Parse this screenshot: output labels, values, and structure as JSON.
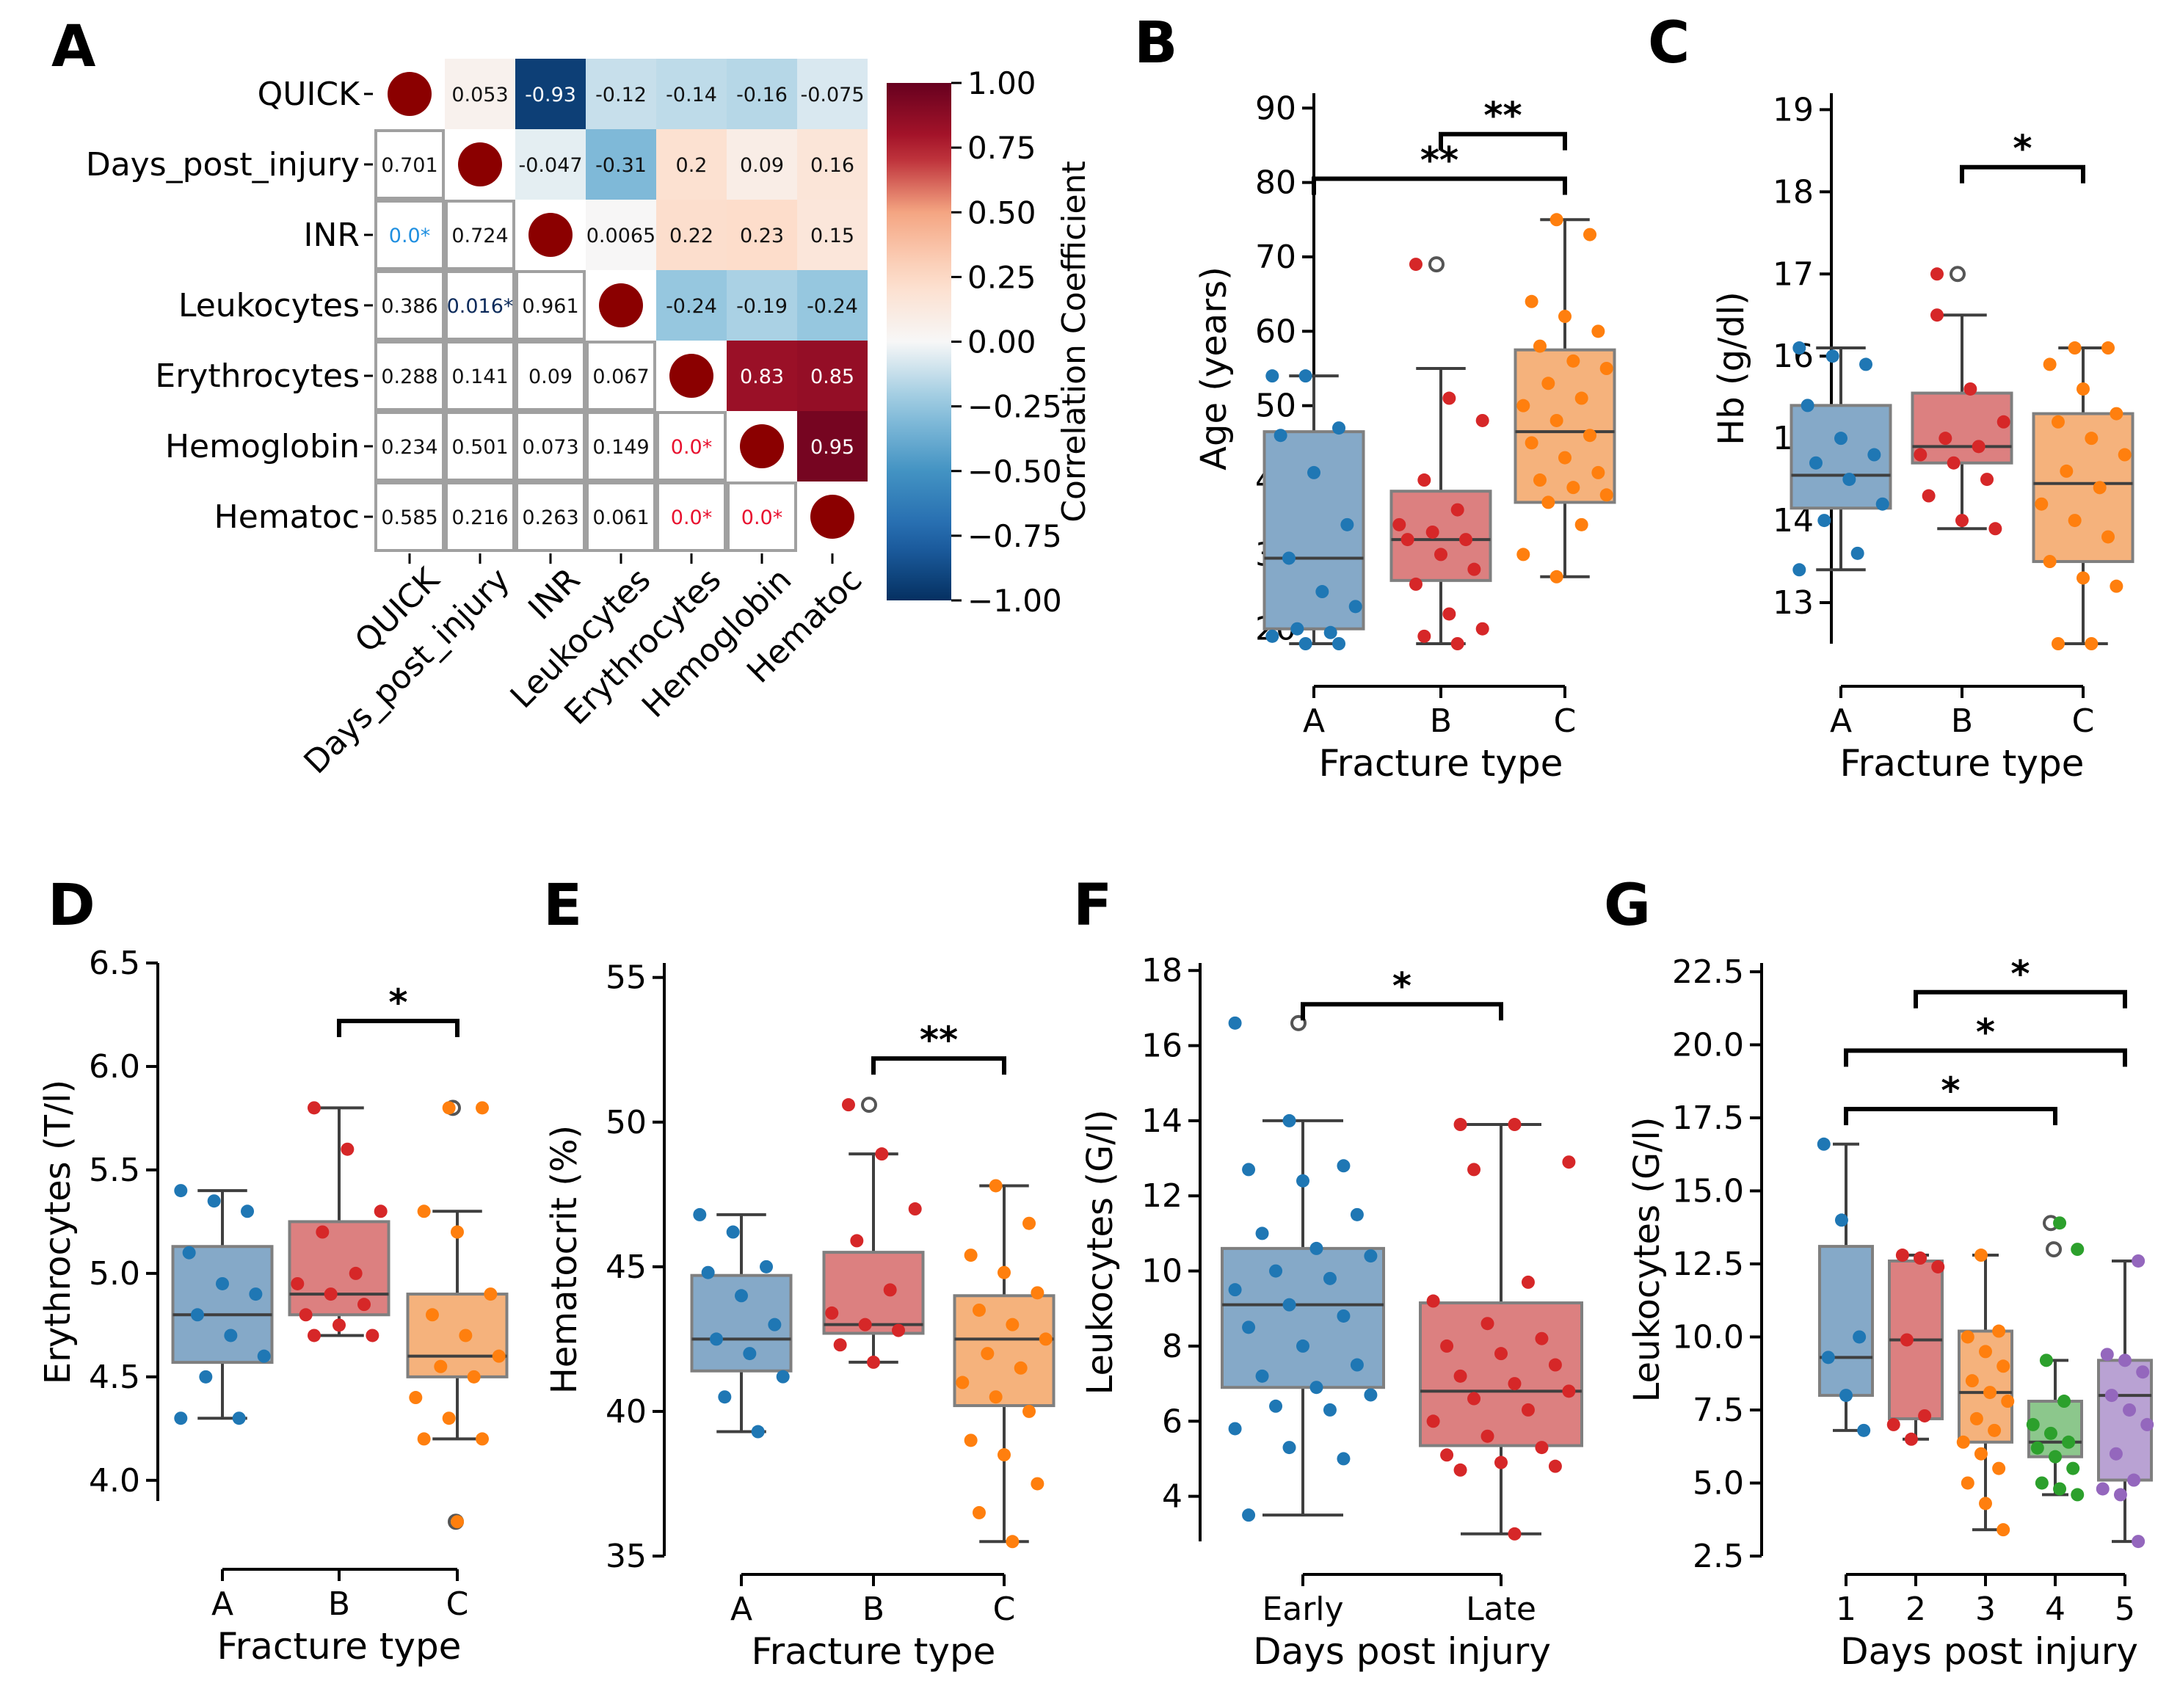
{
  "figure_title": "Multi-panel figure: correlation heatmap and box plots of clinical variables",
  "colors": {
    "A": "#1f77b4",
    "B": "#d62728",
    "C": "#ff7f0e",
    "D": "#2ca02c",
    "E": "#9467bd",
    "A_box": "#85a9c8",
    "B_box": "#dc8080",
    "C_box": "#f5b27c",
    "D_box": "#8cc78c",
    "E_box": "#b9a2d3",
    "box_edge": "#7f7f7f",
    "whisker": "#3f3f3f",
    "median": "#3f3f3f",
    "axis": "#000000",
    "cmap_neg": "#053061",
    "cmap_mid": "#f7f7f7",
    "cmap_pos": "#67001f",
    "sig_red": "#e8102e",
    "sig_blue": "#1f8fe0"
  },
  "chart_data": [
    {
      "panel": "A",
      "type": "heatmap",
      "variables": [
        "QUICK",
        "Days_post_injury",
        "INR",
        "Leukocytes",
        "Erythrocytes",
        "Hemoglobin",
        "Hematoc"
      ],
      "upper_triangle_correlations": [
        [
          "",
          "0.053",
          "-0.93",
          "-0.12",
          "-0.14",
          "-0.16",
          "-0.075"
        ],
        [
          "",
          "",
          "-0.047",
          "-0.31",
          "0.2",
          "0.09",
          "0.16"
        ],
        [
          "",
          "",
          "",
          "0.0065",
          "0.22",
          "0.23",
          "0.15"
        ],
        [
          "",
          "",
          "",
          "",
          "-0.24",
          "-0.19",
          "-0.24"
        ],
        [
          "",
          "",
          "",
          "",
          "",
          "0.83",
          "0.85"
        ],
        [
          "",
          "",
          "",
          "",
          "",
          "",
          "0.95"
        ],
        [
          "",
          "",
          "",
          "",
          "",
          "",
          ""
        ]
      ],
      "lower_triangle_pvalues": [
        [
          "",
          "",
          "",
          "",
          "",
          "",
          ""
        ],
        [
          "0.701",
          "",
          "",
          "",
          "",
          "",
          ""
        ],
        [
          "0.0*",
          "0.724",
          "",
          "",
          "",
          "",
          ""
        ],
        [
          "0.386",
          "0.016*",
          "0.961",
          "",
          "",
          "",
          ""
        ],
        [
          "0.288",
          "0.141",
          "0.09",
          "0.067",
          "",
          "",
          ""
        ],
        [
          "0.234",
          "0.501",
          "0.073",
          "0.149",
          "0.0*",
          "",
          ""
        ],
        [
          "0.585",
          "0.216",
          "0.263",
          "0.061",
          "0.0*",
          "0.0*",
          ""
        ]
      ],
      "colorbar": {
        "label": "Correlation Coefficient",
        "range": [
          -1.0,
          1.0
        ],
        "ticks": [
          "1.00",
          "0.75",
          "0.50",
          "0.25",
          "0.00",
          "−0.25",
          "−0.50",
          "−0.75",
          "−1.00"
        ]
      }
    },
    {
      "panel": "B",
      "type": "box",
      "ylabel": "Age (years)",
      "xlabel": "Fracture type",
      "ylim": [
        18,
        92
      ],
      "yticks": [
        20,
        30,
        40,
        50,
        60,
        70,
        80,
        90
      ],
      "groups": [
        {
          "label": "A",
          "color": "A",
          "q1": 20,
          "median": 29.5,
          "q3": 46.5,
          "whislo": 18,
          "whishi": 54,
          "outliers": [],
          "points": [
            54,
            54,
            47,
            46,
            41,
            34,
            29.5,
            25,
            23,
            20,
            19.5,
            19,
            18,
            18
          ]
        },
        {
          "label": "B",
          "color": "B",
          "q1": 26.5,
          "median": 32,
          "q3": 38.5,
          "whislo": 18,
          "whishi": 55,
          "outliers": [
            69
          ],
          "points": [
            69,
            51,
            48,
            40,
            36,
            34,
            33,
            32,
            32,
            30,
            28,
            26,
            22,
            20,
            19,
            18
          ]
        },
        {
          "label": "C",
          "color": "C",
          "q1": 37,
          "median": 46.5,
          "q3": 57.5,
          "whislo": 27,
          "whishi": 75,
          "outliers": [],
          "points": [
            75,
            73,
            64,
            62,
            60,
            58,
            56,
            55,
            53,
            51,
            50,
            48,
            46,
            45,
            43,
            41,
            40,
            39,
            38,
            37,
            34,
            30,
            27
          ]
        }
      ],
      "significance": [
        {
          "from": "B",
          "to": "C",
          "label": "**",
          "y": 86.5
        },
        {
          "from": "A",
          "to": "C",
          "label": "**",
          "y": 80.5
        }
      ]
    },
    {
      "panel": "C",
      "type": "box",
      "ylabel": "Hb (g/dl)",
      "xlabel": "Fracture type",
      "ylim": [
        12.5,
        19.2
      ],
      "yticks": [
        13,
        14,
        15,
        16,
        17,
        18,
        19
      ],
      "groups": [
        {
          "label": "A",
          "color": "A",
          "q1": 14.15,
          "median": 14.55,
          "q3": 15.4,
          "whislo": 13.4,
          "whishi": 16.1,
          "outliers": [],
          "points": [
            16.1,
            16.0,
            15.9,
            15.4,
            15.0,
            14.8,
            14.7,
            14.5,
            14.2,
            14.0,
            13.6,
            13.4
          ]
        },
        {
          "label": "B",
          "color": "B",
          "q1": 14.7,
          "median": 14.9,
          "q3": 15.55,
          "whislo": 13.9,
          "whishi": 16.5,
          "outliers": [
            17.0
          ],
          "points": [
            16.5,
            15.6,
            15.2,
            15.0,
            14.9,
            14.8,
            14.7,
            14.5,
            14.3,
            14.0,
            13.9,
            17.0
          ]
        },
        {
          "label": "C",
          "color": "C",
          "q1": 13.5,
          "median": 14.45,
          "q3": 15.3,
          "whislo": 12.5,
          "whishi": 16.1,
          "outliers": [],
          "points": [
            16.1,
            16.1,
            15.9,
            15.6,
            15.3,
            15.2,
            15.0,
            14.8,
            14.6,
            14.4,
            14.2,
            14.0,
            13.8,
            13.5,
            13.3,
            13.2,
            12.5,
            12.5
          ]
        }
      ],
      "significance": [
        {
          "from": "B",
          "to": "C",
          "label": "*",
          "y": 18.3
        }
      ]
    },
    {
      "panel": "D",
      "type": "box",
      "ylabel": "Erythrocytes (T/l)",
      "xlabel": "Fracture type",
      "ylim": [
        3.9,
        6.5
      ],
      "yticks": [
        "4.0",
        "4.5",
        "5.0",
        "5.5",
        "6.0",
        "6.5"
      ],
      "groups": [
        {
          "label": "A",
          "color": "A",
          "q1": 4.57,
          "median": 4.8,
          "q3": 5.13,
          "whislo": 4.3,
          "whishi": 5.4,
          "outliers": [],
          "points": [
            5.4,
            5.35,
            5.3,
            5.1,
            4.95,
            4.9,
            4.8,
            4.7,
            4.6,
            4.5,
            4.3,
            4.3
          ]
        },
        {
          "label": "B",
          "color": "B",
          "q1": 4.8,
          "median": 4.9,
          "q3": 5.25,
          "whislo": 4.7,
          "whishi": 5.8,
          "outliers": [],
          "points": [
            5.8,
            5.6,
            5.3,
            5.2,
            5.0,
            4.95,
            4.9,
            4.85,
            4.8,
            4.75,
            4.7,
            4.7
          ]
        },
        {
          "label": "C",
          "color": "C",
          "q1": 4.5,
          "median": 4.6,
          "q3": 4.9,
          "whislo": 4.2,
          "whishi": 5.3,
          "outliers": [
            5.8,
            3.8
          ],
          "points": [
            5.8,
            5.8,
            5.3,
            5.2,
            4.9,
            4.8,
            4.7,
            4.6,
            4.55,
            4.5,
            4.4,
            4.3,
            4.2,
            4.2,
            3.8
          ]
        }
      ],
      "significance": [
        {
          "from": "B",
          "to": "C",
          "label": "*",
          "y": 6.22
        }
      ]
    },
    {
      "panel": "E",
      "type": "box",
      "ylabel": "Hematocrit (%)",
      "xlabel": "Fracture type",
      "ylim": [
        35,
        55.5
      ],
      "yticks": [
        35,
        40,
        45,
        50,
        55
      ],
      "groups": [
        {
          "label": "A",
          "color": "A",
          "q1": 41.4,
          "median": 42.5,
          "q3": 44.7,
          "whislo": 39.3,
          "whishi": 46.8,
          "outliers": [],
          "points": [
            46.8,
            46.2,
            45.0,
            44.8,
            44.0,
            43.0,
            42.5,
            42.0,
            41.2,
            40.5,
            39.3
          ]
        },
        {
          "label": "B",
          "color": "B",
          "q1": 42.7,
          "median": 43.0,
          "q3": 45.5,
          "whislo": 41.7,
          "whishi": 48.9,
          "outliers": [
            50.6
          ],
          "points": [
            50.6,
            48.9,
            47.0,
            45.9,
            44.2,
            43.4,
            43.0,
            42.8,
            42.3,
            41.7
          ]
        },
        {
          "label": "C",
          "color": "C",
          "q1": 40.2,
          "median": 42.5,
          "q3": 44.0,
          "whislo": 35.5,
          "whishi": 47.8,
          "outliers": [],
          "points": [
            47.8,
            46.5,
            45.4,
            44.8,
            44.1,
            43.5,
            43.0,
            42.5,
            42.0,
            41.5,
            41.0,
            40.5,
            40.0,
            39.0,
            38.5,
            37.5,
            36.5,
            35.5
          ]
        }
      ],
      "significance": [
        {
          "from": "B",
          "to": "C",
          "label": "**",
          "y": 52.2
        }
      ]
    },
    {
      "panel": "F",
      "type": "box",
      "ylabel": "Leukocytes (G/l)",
      "xlabel": "Days post injury",
      "ylim": [
        2.8,
        18.2
      ],
      "yticks": [
        4,
        6,
        8,
        10,
        12,
        14,
        16,
        18
      ],
      "groups": [
        {
          "label": "Early",
          "color": "A",
          "q1": 6.9,
          "median": 9.1,
          "q3": 10.6,
          "whislo": 3.5,
          "whishi": 14.0,
          "outliers": [
            16.6
          ],
          "points": [
            16.6,
            14.0,
            12.8,
            12.7,
            12.4,
            11.5,
            11.0,
            10.6,
            10.4,
            10.0,
            9.8,
            9.5,
            9.1,
            8.8,
            8.5,
            8.0,
            7.5,
            7.2,
            6.9,
            6.7,
            6.4,
            6.3,
            5.8,
            5.3,
            5.0,
            3.5
          ]
        },
        {
          "label": "Late",
          "color": "B",
          "q1": 5.35,
          "median": 6.8,
          "q3": 9.15,
          "whislo": 3.0,
          "whishi": 13.9,
          "outliers": [],
          "points": [
            13.9,
            13.9,
            12.9,
            12.7,
            9.7,
            9.2,
            8.6,
            8.2,
            8.0,
            7.8,
            7.5,
            7.2,
            7.0,
            6.8,
            6.6,
            6.3,
            6.0,
            5.6,
            5.3,
            5.1,
            4.9,
            4.8,
            4.7,
            3.0
          ]
        }
      ],
      "significance": [
        {
          "from": "Early",
          "to": "Late",
          "label": "*",
          "y": 17.1
        }
      ]
    },
    {
      "panel": "G",
      "type": "box",
      "ylabel": "Leukocytes (G/l)",
      "xlabel": "Days post injury",
      "ylim": [
        2.5,
        22.8
      ],
      "yticks": [
        "2.5",
        "5.0",
        "7.5",
        "10.0",
        "12.5",
        "15.0",
        "17.5",
        "20.0",
        "22.5"
      ],
      "groups": [
        {
          "label": "1",
          "color": "A",
          "q1": 8.0,
          "median": 9.3,
          "q3": 13.1,
          "whislo": 6.8,
          "whishi": 16.6,
          "outliers": [],
          "points": [
            16.6,
            14.0,
            10.0,
            9.3,
            8.0,
            6.8
          ]
        },
        {
          "label": "2",
          "color": "B",
          "q1": 7.2,
          "median": 9.9,
          "q3": 12.6,
          "whislo": 6.5,
          "whishi": 12.8,
          "outliers": [],
          "points": [
            12.8,
            12.7,
            12.4,
            9.9,
            7.3,
            7.0,
            6.5
          ]
        },
        {
          "label": "3",
          "color": "C",
          "q1": 6.4,
          "median": 8.1,
          "q3": 10.2,
          "whislo": 3.4,
          "whishi": 12.8,
          "outliers": [],
          "points": [
            12.8,
            10.2,
            10.0,
            9.5,
            9.0,
            8.5,
            8.1,
            7.8,
            7.2,
            6.8,
            6.4,
            6.0,
            5.5,
            5.0,
            4.3,
            3.4
          ]
        },
        {
          "label": "4",
          "color": "D",
          "q1": 5.9,
          "median": 6.4,
          "q3": 7.8,
          "whislo": 4.6,
          "whishi": 9.2,
          "outliers": [
            13.9,
            13.0
          ],
          "points": [
            13.9,
            13.0,
            9.2,
            7.8,
            7.0,
            6.7,
            6.4,
            6.2,
            5.9,
            5.5,
            5.0,
            4.8,
            4.6
          ]
        },
        {
          "label": "5",
          "color": "E",
          "q1": 5.1,
          "median": 8.0,
          "q3": 9.2,
          "whislo": 3.0,
          "whishi": 12.6,
          "outliers": [],
          "points": [
            12.6,
            9.4,
            9.2,
            8.8,
            8.0,
            7.5,
            7.0,
            6.0,
            5.1,
            4.8,
            4.6,
            3.0
          ]
        }
      ],
      "significance": [
        {
          "from": "2",
          "to": "5",
          "label": "*",
          "y": 21.8
        },
        {
          "from": "1",
          "to": "5",
          "label": "*",
          "y": 19.8
        },
        {
          "from": "1",
          "to": "4",
          "label": "*",
          "y": 17.8
        }
      ]
    }
  ]
}
